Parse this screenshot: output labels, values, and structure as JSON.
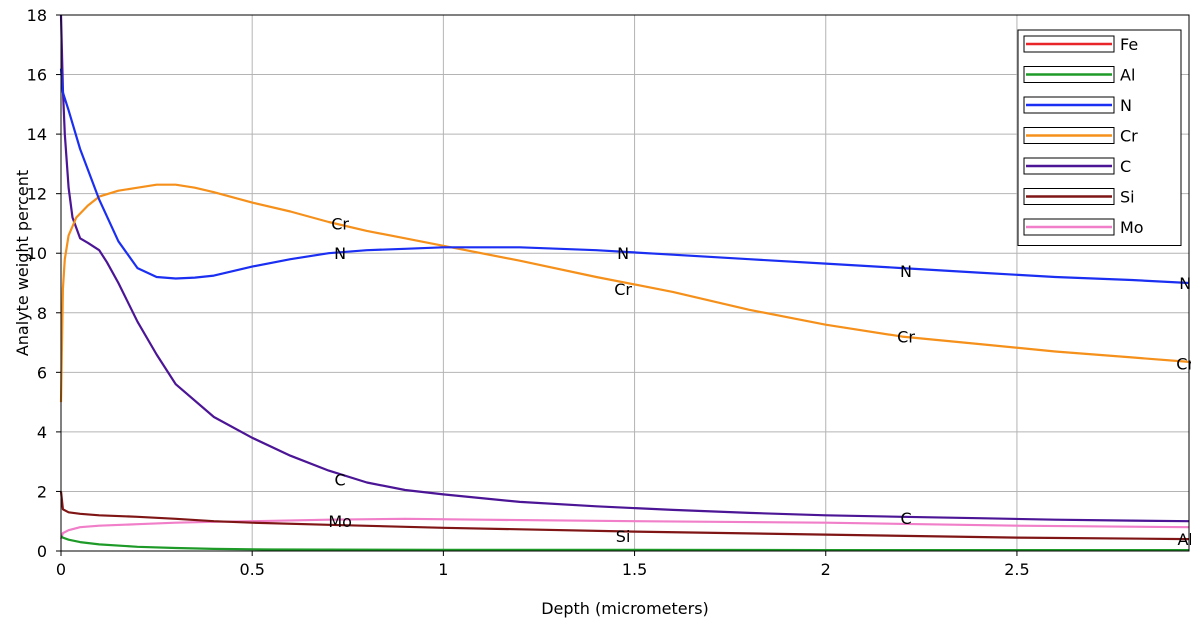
{
  "chart_data": {
    "type": "line",
    "xlabel": "Depth (micrometers)",
    "ylabel": "Analyte weight percent",
    "xlim": [
      0,
      2.95
    ],
    "ylim": [
      0,
      18
    ],
    "x_ticks": [
      "0",
      "0.5",
      "1",
      "1.5",
      "2",
      "2.5"
    ],
    "x_tick_values": [
      0,
      0.5,
      1,
      1.5,
      2,
      2.5
    ],
    "y_ticks": [
      "0",
      "2",
      "4",
      "6",
      "8",
      "10",
      "12",
      "14",
      "16",
      "18"
    ],
    "y_tick_values": [
      0,
      2,
      4,
      6,
      8,
      10,
      12,
      14,
      16,
      18
    ],
    "grid": true,
    "legend_position": "top-right",
    "series": [
      {
        "name": "Fe",
        "color": "#e8262a",
        "x": [],
        "y": []
      },
      {
        "name": "Al",
        "color": "#1e9a28",
        "x": [
          0,
          0.005,
          0.02,
          0.05,
          0.1,
          0.2,
          0.3,
          0.4,
          0.55,
          1.0,
          1.5,
          2.0,
          2.5,
          2.95
        ],
        "y": [
          0.5,
          0.45,
          0.38,
          0.3,
          0.22,
          0.14,
          0.1,
          0.07,
          0.05,
          0.04,
          0.04,
          0.03,
          0.03,
          0.03
        ]
      },
      {
        "name": "N",
        "color": "#1b2ff2",
        "x": [
          0,
          0.005,
          0.02,
          0.05,
          0.1,
          0.15,
          0.2,
          0.25,
          0.3,
          0.35,
          0.4,
          0.45,
          0.5,
          0.6,
          0.7,
          0.8,
          0.9,
          1.0,
          1.2,
          1.4,
          1.6,
          1.8,
          2.0,
          2.2,
          2.4,
          2.6,
          2.8,
          2.95
        ],
        "y": [
          16.2,
          15.4,
          14.8,
          13.5,
          11.8,
          10.4,
          9.5,
          9.2,
          9.15,
          9.18,
          9.25,
          9.4,
          9.55,
          9.8,
          10.0,
          10.1,
          10.15,
          10.2,
          10.2,
          10.1,
          9.95,
          9.8,
          9.65,
          9.5,
          9.35,
          9.2,
          9.1,
          9.0
        ]
      },
      {
        "name": "Cr",
        "color": "#f5901b",
        "x": [
          0,
          0.005,
          0.01,
          0.02,
          0.04,
          0.07,
          0.1,
          0.15,
          0.2,
          0.25,
          0.3,
          0.35,
          0.4,
          0.5,
          0.6,
          0.7,
          0.8,
          0.9,
          1.0,
          1.2,
          1.4,
          1.6,
          1.8,
          2.0,
          2.2,
          2.4,
          2.6,
          2.8,
          2.95
        ],
        "y": [
          5.0,
          8.8,
          9.8,
          10.6,
          11.2,
          11.6,
          11.9,
          12.1,
          12.2,
          12.3,
          12.3,
          12.2,
          12.05,
          11.7,
          11.4,
          11.05,
          10.75,
          10.5,
          10.25,
          9.75,
          9.2,
          8.7,
          8.1,
          7.6,
          7.2,
          6.95,
          6.7,
          6.5,
          6.35
        ]
      },
      {
        "name": "C",
        "color": "#4b1596",
        "x": [
          0,
          0.005,
          0.01,
          0.02,
          0.03,
          0.05,
          0.07,
          0.1,
          0.12,
          0.15,
          0.2,
          0.25,
          0.3,
          0.4,
          0.5,
          0.6,
          0.7,
          0.8,
          0.9,
          1.0,
          1.2,
          1.4,
          1.6,
          1.8,
          2.0,
          2.2,
          2.4,
          2.6,
          2.8,
          2.95
        ],
        "y": [
          18,
          15.5,
          14.0,
          12.2,
          11.2,
          10.5,
          10.35,
          10.1,
          9.7,
          9.0,
          7.7,
          6.6,
          5.6,
          4.5,
          3.8,
          3.2,
          2.7,
          2.3,
          2.05,
          1.9,
          1.65,
          1.5,
          1.38,
          1.28,
          1.2,
          1.15,
          1.1,
          1.05,
          1.02,
          1.0
        ]
      },
      {
        "name": "Si",
        "color": "#7f1515",
        "x": [
          0,
          0.005,
          0.02,
          0.05,
          0.1,
          0.2,
          0.3,
          0.4,
          0.5,
          0.7,
          1.0,
          1.5,
          2.0,
          2.5,
          2.95
        ],
        "y": [
          2.0,
          1.4,
          1.3,
          1.25,
          1.2,
          1.15,
          1.08,
          1.0,
          0.95,
          0.88,
          0.78,
          0.65,
          0.55,
          0.45,
          0.4
        ]
      },
      {
        "name": "Mo",
        "color": "#f07ec8",
        "x": [
          0,
          0.005,
          0.02,
          0.05,
          0.1,
          0.2,
          0.3,
          0.4,
          0.5,
          0.7,
          0.9,
          1.1,
          1.5,
          2.0,
          2.5,
          2.95
        ],
        "y": [
          0.4,
          0.6,
          0.7,
          0.8,
          0.85,
          0.9,
          0.95,
          0.98,
          1.0,
          1.05,
          1.08,
          1.05,
          1.0,
          0.95,
          0.85,
          0.8
        ]
      }
    ],
    "inline_labels": [
      {
        "text": "Cr",
        "x": 0.73,
        "y": 11.0
      },
      {
        "text": "N",
        "x": 0.73,
        "y": 10.0
      },
      {
        "text": "N",
        "x": 1.47,
        "y": 10.0
      },
      {
        "text": "Cr",
        "x": 1.47,
        "y": 8.8
      },
      {
        "text": "N",
        "x": 2.21,
        "y": 9.4
      },
      {
        "text": "Cr",
        "x": 2.21,
        "y": 7.2
      },
      {
        "text": "N",
        "x": 2.94,
        "y": 9.0
      },
      {
        "text": "Cr",
        "x": 2.94,
        "y": 6.3
      },
      {
        "text": "C",
        "x": 0.73,
        "y": 2.4
      },
      {
        "text": "Mo",
        "x": 0.73,
        "y": 1.0
      },
      {
        "text": "C",
        "x": 2.21,
        "y": 1.1
      },
      {
        "text": "Si",
        "x": 1.47,
        "y": 0.5
      },
      {
        "text": "Al",
        "x": 2.94,
        "y": 0.4
      }
    ]
  }
}
